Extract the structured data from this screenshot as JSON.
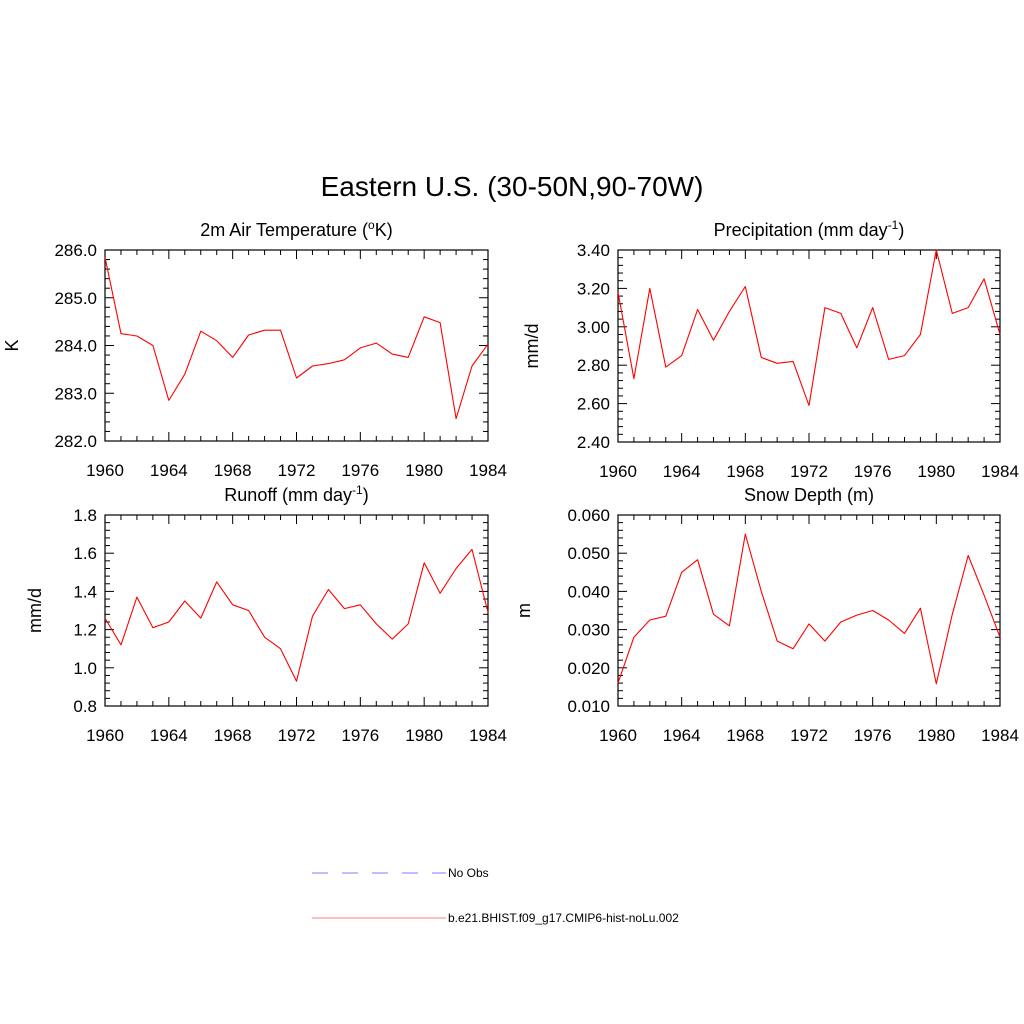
{
  "main_title": "Eastern U.S. (30-50N,90-70W)",
  "legend": [
    {
      "label": "No Obs",
      "color": "#9999ff",
      "style": "dashed"
    },
    {
      "label": "b.e21.BHIST.f09_g17.CMIP6-hist-noLu.002",
      "color": "#ff0000",
      "style": "solid"
    }
  ],
  "chart_data": [
    {
      "type": "line",
      "title": "2m Air Temperature (",
      "title_sup": "o",
      "title_post": "K)",
      "ylabel": "K",
      "xlim": [
        1960,
        1984
      ],
      "ylim": [
        282.0,
        286.0
      ],
      "xticks": [
        "1960",
        "1964",
        "1968",
        "1972",
        "1976",
        "1980",
        "1984"
      ],
      "yticks": [
        "282.0",
        "283.0",
        "284.0",
        "285.0",
        "286.0"
      ],
      "color": "#ff0000",
      "x": [
        1960,
        1961,
        1962,
        1963,
        1964,
        1965,
        1966,
        1967,
        1968,
        1969,
        1970,
        1971,
        1972,
        1973,
        1974,
        1975,
        1976,
        1977,
        1978,
        1979,
        1980,
        1981,
        1982,
        1983,
        1984
      ],
      "values": [
        285.85,
        284.25,
        284.2,
        284.0,
        282.85,
        283.4,
        284.3,
        284.1,
        283.75,
        284.22,
        284.32,
        284.32,
        283.32,
        283.57,
        283.62,
        283.7,
        283.95,
        284.05,
        283.82,
        283.75,
        284.6,
        284.48,
        282.47,
        283.57,
        284.03
      ]
    },
    {
      "type": "line",
      "title": "Precipitation (mm day",
      "title_sup": "-1",
      "title_post": ")",
      "ylabel": "mm/d",
      "xlim": [
        1960,
        1984
      ],
      "ylim": [
        2.4,
        3.4
      ],
      "xticks": [
        "1960",
        "1964",
        "1968",
        "1972",
        "1976",
        "1980",
        "1984"
      ],
      "yticks": [
        "2.40",
        "2.60",
        "2.80",
        "3.00",
        "3.20",
        "3.40"
      ],
      "color": "#ff0000",
      "x": [
        1960,
        1961,
        1962,
        1963,
        1964,
        1965,
        1966,
        1967,
        1968,
        1969,
        1970,
        1971,
        1972,
        1973,
        1974,
        1975,
        1976,
        1977,
        1978,
        1979,
        1980,
        1981,
        1982,
        1983,
        1984
      ],
      "values": [
        3.18,
        2.73,
        3.2,
        2.79,
        2.85,
        3.09,
        2.93,
        3.08,
        3.21,
        2.84,
        2.81,
        2.82,
        2.59,
        3.1,
        3.07,
        2.89,
        3.1,
        2.83,
        2.85,
        2.96,
        3.4,
        3.07,
        3.1,
        3.25,
        2.96
      ]
    },
    {
      "type": "line",
      "title": "Runoff (mm day",
      "title_sup": "-1",
      "title_post": ")",
      "ylabel": "mm/d",
      "xlim": [
        1960,
        1984
      ],
      "ylim": [
        0.8,
        1.8
      ],
      "xticks": [
        "1960",
        "1964",
        "1968",
        "1972",
        "1976",
        "1980",
        "1984"
      ],
      "yticks": [
        "0.8",
        "1.0",
        "1.2",
        "1.4",
        "1.6",
        "1.8"
      ],
      "color": "#ff0000",
      "x": [
        1960,
        1961,
        1962,
        1963,
        1964,
        1965,
        1966,
        1967,
        1968,
        1969,
        1970,
        1971,
        1972,
        1973,
        1974,
        1975,
        1976,
        1977,
        1978,
        1979,
        1980,
        1981,
        1982,
        1983,
        1984
      ],
      "values": [
        1.26,
        1.12,
        1.37,
        1.21,
        1.24,
        1.35,
        1.26,
        1.45,
        1.33,
        1.3,
        1.16,
        1.1,
        0.93,
        1.27,
        1.41,
        1.31,
        1.33,
        1.23,
        1.15,
        1.23,
        1.55,
        1.39,
        1.52,
        1.62,
        1.29
      ]
    },
    {
      "type": "line",
      "title": "Snow Depth (m)",
      "title_sup": "",
      "title_post": "",
      "ylabel": "m",
      "xlim": [
        1960,
        1984
      ],
      "ylim": [
        0.01,
        0.06
      ],
      "xticks": [
        "1960",
        "1964",
        "1968",
        "1972",
        "1976",
        "1980",
        "1984"
      ],
      "yticks": [
        "0.010",
        "0.020",
        "0.030",
        "0.040",
        "0.050",
        "0.060"
      ],
      "color": "#ff0000",
      "x": [
        1960,
        1961,
        1962,
        1963,
        1964,
        1965,
        1966,
        1967,
        1968,
        1969,
        1970,
        1971,
        1972,
        1973,
        1974,
        1975,
        1976,
        1977,
        1978,
        1979,
        1980,
        1981,
        1982,
        1983,
        1984
      ],
      "values": [
        0.016,
        0.028,
        0.0325,
        0.0335,
        0.045,
        0.0483,
        0.034,
        0.031,
        0.055,
        0.04,
        0.027,
        0.025,
        0.0315,
        0.027,
        0.032,
        0.0338,
        0.035,
        0.0325,
        0.029,
        0.0356,
        0.0158,
        0.034,
        0.0494,
        0.039,
        0.028
      ]
    }
  ]
}
